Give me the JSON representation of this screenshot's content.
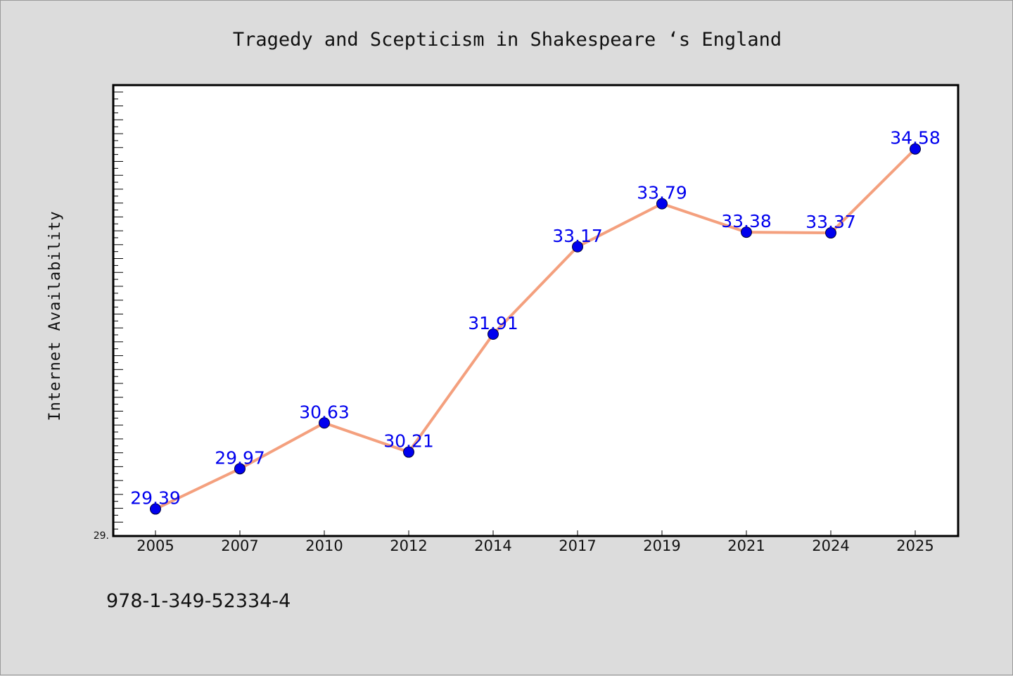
{
  "chart_data": {
    "type": "line",
    "title": "Tragedy and Scepticism in Shakespeare ‘s England",
    "xlabel": "",
    "ylabel": "Internet Availability",
    "categories": [
      "2005",
      "2007",
      "2010",
      "2012",
      "2014",
      "2017",
      "2019",
      "2021",
      "2024",
      "2025"
    ],
    "series": [
      {
        "values": [
          29.39,
          29.97,
          30.63,
          30.21,
          31.91,
          33.17,
          33.79,
          33.38,
          33.37,
          34.58
        ],
        "data_labels": [
          "29.39",
          "29.97",
          "30.63",
          "30.21",
          "31.91",
          "33.17",
          "33.79",
          "33.38",
          "33.37",
          "34.58"
        ],
        "line_color": "#f4a07e",
        "marker_color": "#0000ee"
      }
    ],
    "y_axis_min_label": "29.",
    "ylim": [
      29.0,
      35.5
    ],
    "grid": false,
    "legend": "none"
  },
  "footer": {
    "isbn": "978-1-349-52334-4"
  }
}
